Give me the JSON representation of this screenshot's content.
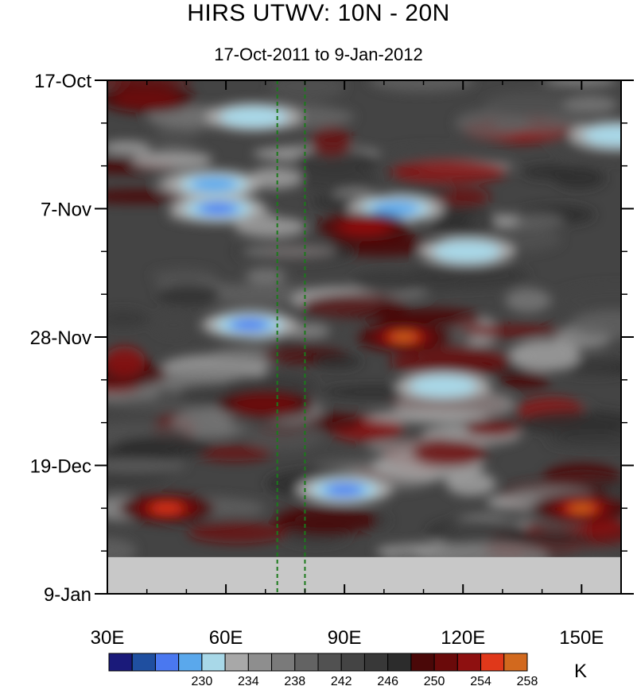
{
  "chart_data": {
    "type": "heatmap",
    "title": "HIRS UTWV: 10N - 20N",
    "subtitle": "17-Oct-2011 to 9-Jan-2012",
    "x_ticks": [
      {
        "value": 30,
        "label": "30E"
      },
      {
        "value": 60,
        "label": "60E"
      },
      {
        "value": 90,
        "label": "90E"
      },
      {
        "value": 120,
        "label": "120E"
      },
      {
        "value": 150,
        "label": "150E"
      }
    ],
    "y_ticks": [
      {
        "value": "2011-10-17",
        "label": "17-Oct"
      },
      {
        "value": "2011-11-07",
        "label": "7-Nov"
      },
      {
        "value": "2011-11-28",
        "label": "28-Nov"
      },
      {
        "value": "2011-12-19",
        "label": "19-Dec"
      },
      {
        "value": "2012-01-09",
        "label": "9-Jan"
      }
    ],
    "xlim": [
      30,
      160
    ],
    "ylim": [
      "2011-10-17",
      "2012-01-09"
    ],
    "reference_lines_x": [
      73,
      80
    ],
    "reference_line_color": "#1a7a1a",
    "missing_data_after": "2012-01-03",
    "missing_color": "#c8c8c8",
    "colorbar": {
      "unit": "K",
      "colors": [
        "#1a1a7a",
        "#1f4fa0",
        "#4a78f0",
        "#5aa8ec",
        "#a8d8e8",
        "#a8a8a8",
        "#8e8e8e",
        "#7a7a7a",
        "#636363",
        "#515151",
        "#444444",
        "#383838",
        "#2c2c2c",
        "#4a0808",
        "#6a0a0a",
        "#8e1010",
        "#e0381a",
        "#d2691e"
      ],
      "labels": [
        {
          "label": "230",
          "boundary": 4
        },
        {
          "label": "234",
          "boundary": 6
        },
        {
          "label": "238",
          "boundary": 8
        },
        {
          "label": "242",
          "boundary": 10
        },
        {
          "label": "246",
          "boundary": 12
        },
        {
          "label": "250",
          "boundary": 14
        },
        {
          "label": "254",
          "boundary": 16
        },
        {
          "label": "258",
          "boundary": 18
        }
      ]
    },
    "features": [
      {
        "kind": "dry",
        "lon": 57,
        "date": "2011-11-03",
        "level": 3
      },
      {
        "kind": "dry",
        "lon": 58,
        "date": "2011-11-07",
        "level": 2
      },
      {
        "kind": "dry",
        "lon": 103,
        "date": "2011-11-07",
        "level": 3
      },
      {
        "kind": "dry",
        "lon": 121,
        "date": "2011-11-14",
        "level": 4
      },
      {
        "kind": "dry",
        "lon": 66,
        "date": "2011-11-26",
        "level": 2
      },
      {
        "kind": "dry",
        "lon": 115,
        "date": "2011-12-06",
        "level": 4
      },
      {
        "kind": "dry",
        "lon": 90,
        "date": "2011-12-23",
        "level": 2
      },
      {
        "kind": "dry",
        "lon": 67,
        "date": "2011-10-23",
        "level": 4
      },
      {
        "kind": "dry",
        "lon": 159,
        "date": "2011-10-26",
        "level": 4
      },
      {
        "kind": "moist",
        "lon": 105,
        "date": "2011-11-28",
        "level": 17
      },
      {
        "kind": "moist",
        "lon": 45,
        "date": "2011-12-26",
        "level": 16
      },
      {
        "kind": "moist",
        "lon": 150,
        "date": "2011-12-26",
        "level": 17
      },
      {
        "kind": "moist",
        "lon": 40,
        "date": "2011-10-20",
        "level": 14
      },
      {
        "kind": "moist",
        "lon": 95,
        "date": "2011-11-10",
        "level": 15
      },
      {
        "kind": "moist",
        "lon": 70,
        "date": "2011-12-09",
        "level": 14
      }
    ]
  }
}
